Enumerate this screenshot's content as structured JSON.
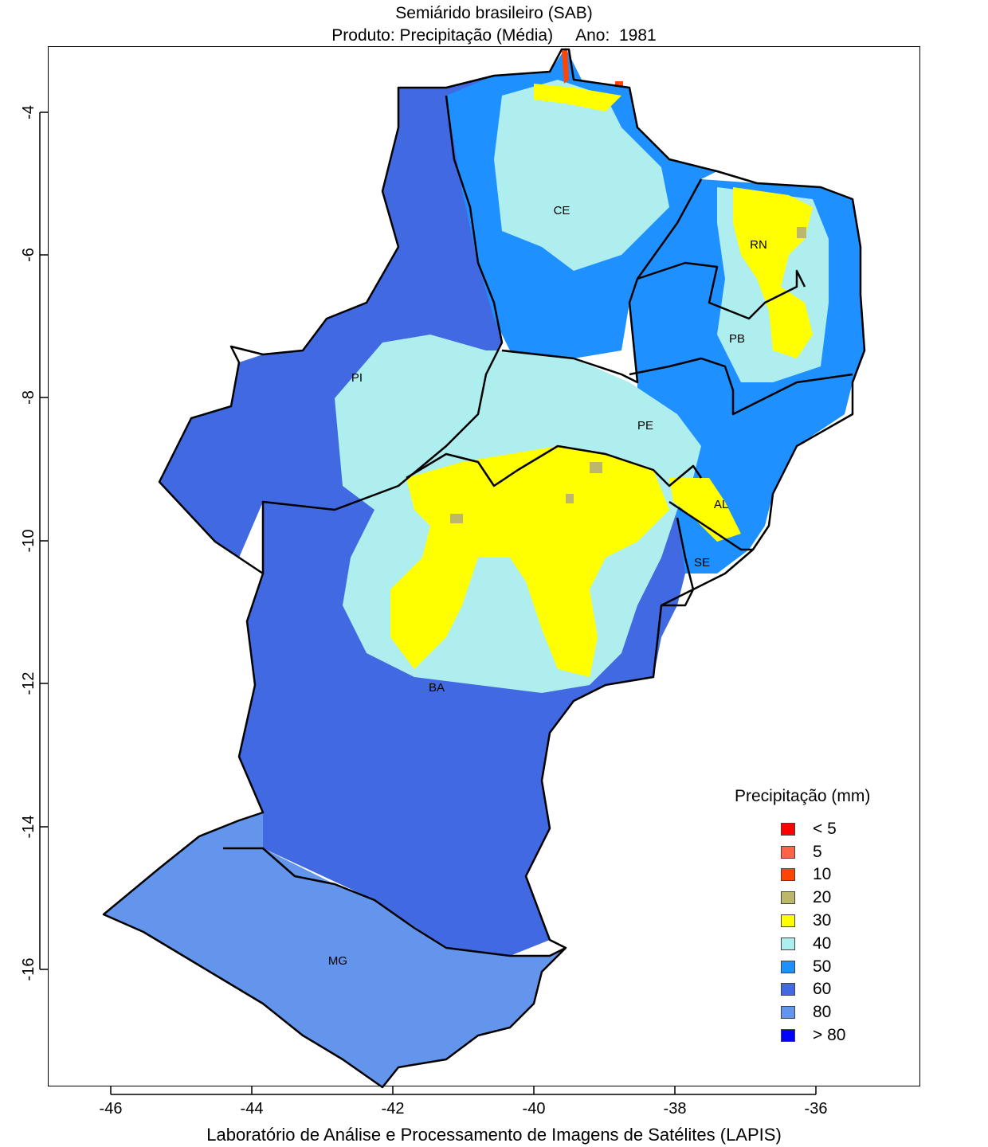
{
  "title": {
    "line1": "Semiárido brasileiro (SAB)",
    "line2_product": "Produto: Precipitação (Média)",
    "line2_year_label": "Ano:",
    "line2_year": "1981"
  },
  "axes": {
    "x_ticks": [
      "-46",
      "-44",
      "-42",
      "-40",
      "-38",
      "-36"
    ],
    "y_ticks": [
      "-4",
      "-6",
      "-8",
      "-10",
      "-12",
      "-14",
      "-16"
    ]
  },
  "states": [
    "CE",
    "RN",
    "PB",
    "PI",
    "PE",
    "AL",
    "SE",
    "BA",
    "MG"
  ],
  "legend": {
    "title": "Precipitação (mm)",
    "items": [
      {
        "label": "< 5",
        "color": "#ff0000"
      },
      {
        "label": "5",
        "color": "#ff6347"
      },
      {
        "label": "10",
        "color": "#ff4500"
      },
      {
        "label": "20",
        "color": "#bdb76b"
      },
      {
        "label": "30",
        "color": "#ffff00"
      },
      {
        "label": "40",
        "color": "#afeeee"
      },
      {
        "label": "50",
        "color": "#1e90ff"
      },
      {
        "label": "60",
        "color": "#4169e1"
      },
      {
        "label": "80",
        "color": "#6495ed"
      },
      {
        "label": "> 80",
        "color": "#0000ff"
      }
    ]
  },
  "footer": "Laboratório de Análise e Processamento de Imagens de Satélites (LAPIS)"
}
